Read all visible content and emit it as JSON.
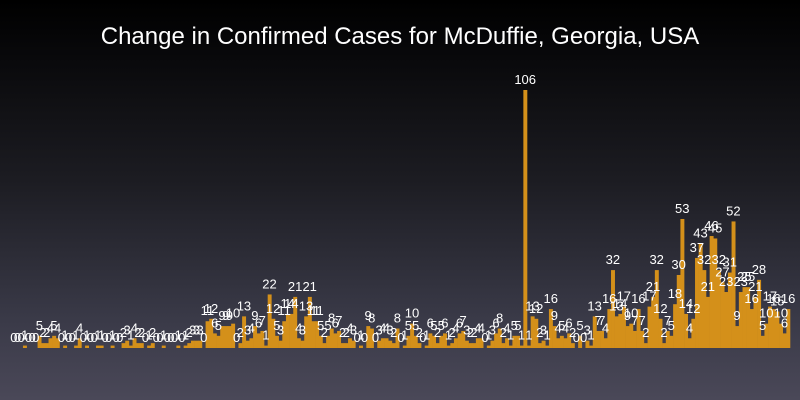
{
  "chart_data": {
    "type": "bar",
    "title": "Change in Confirmed Cases for McDuffie, Georgia, USA",
    "xlabel": "",
    "ylabel": "",
    "ylim": [
      0,
      106
    ],
    "grid": false,
    "legend": "none",
    "bar_color": "#d4901a",
    "values": [
      0,
      0,
      0,
      1,
      0,
      0,
      0,
      5,
      2,
      2,
      4,
      5,
      4,
      0,
      1,
      0,
      0,
      1,
      4,
      0,
      1,
      0,
      0,
      1,
      1,
      0,
      0,
      1,
      0,
      0,
      2,
      3,
      1,
      4,
      2,
      2,
      0,
      1,
      2,
      0,
      0,
      1,
      0,
      0,
      0,
      1,
      0,
      1,
      2,
      3,
      3,
      3,
      0,
      11,
      12,
      6,
      5,
      9,
      9,
      9,
      10,
      0,
      2,
      13,
      3,
      4,
      9,
      6,
      7,
      1,
      22,
      12,
      5,
      3,
      11,
      14,
      14,
      21,
      4,
      3,
      13,
      21,
      11,
      11,
      5,
      2,
      5,
      8,
      6,
      7,
      2,
      2,
      4,
      3,
      0,
      1,
      0,
      9,
      8,
      0,
      3,
      4,
      4,
      3,
      2,
      8,
      0,
      1,
      5,
      10,
      5,
      2,
      0,
      1,
      6,
      5,
      2,
      5,
      6,
      1,
      2,
      4,
      6,
      7,
      3,
      2,
      2,
      4,
      4,
      0,
      1,
      3,
      6,
      8,
      2,
      4,
      1,
      5,
      5,
      1,
      106,
      1,
      13,
      12,
      2,
      3,
      1,
      16,
      9,
      4,
      5,
      4,
      6,
      2,
      0,
      5,
      0,
      3,
      1,
      13,
      7,
      7,
      4,
      16,
      32,
      13,
      14,
      17,
      9,
      10,
      7,
      16,
      7,
      2,
      17,
      21,
      32,
      12,
      2,
      7,
      5,
      18,
      30,
      53,
      14,
      4,
      12,
      37,
      43,
      32,
      21,
      46,
      45,
      32,
      27,
      23,
      31,
      52,
      9,
      23,
      25,
      25,
      16,
      21,
      28,
      5,
      10,
      17,
      16,
      15,
      10,
      6,
      16
    ]
  }
}
